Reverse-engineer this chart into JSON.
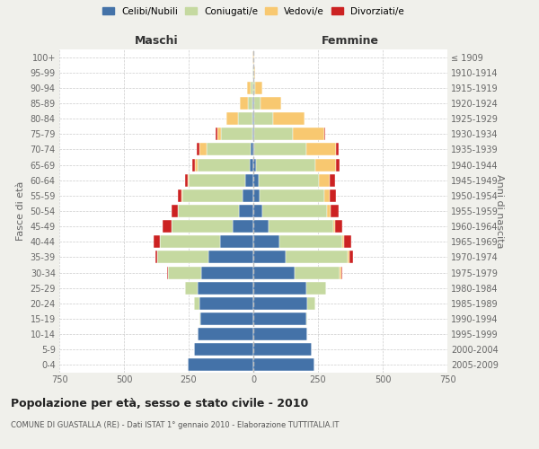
{
  "age_groups": [
    "0-4",
    "5-9",
    "10-14",
    "15-19",
    "20-24",
    "25-29",
    "30-34",
    "35-39",
    "40-44",
    "45-49",
    "50-54",
    "55-59",
    "60-64",
    "65-69",
    "70-74",
    "75-79",
    "80-84",
    "85-89",
    "90-94",
    "95-99",
    "100+"
  ],
  "birth_years": [
    "2005-2009",
    "2000-2004",
    "1995-1999",
    "1990-1994",
    "1985-1989",
    "1980-1984",
    "1975-1979",
    "1970-1974",
    "1965-1969",
    "1960-1964",
    "1955-1959",
    "1950-1954",
    "1945-1949",
    "1940-1944",
    "1935-1939",
    "1930-1934",
    "1925-1929",
    "1920-1924",
    "1915-1919",
    "1910-1914",
    "≤ 1909"
  ],
  "colors": {
    "celibi": "#4472a8",
    "coniugati": "#c5d9a0",
    "vedovi": "#f8c870",
    "divorziati": "#cc2222"
  },
  "maschi": {
    "celibi": [
      255,
      230,
      215,
      205,
      210,
      215,
      200,
      175,
      130,
      80,
      55,
      40,
      30,
      15,
      10,
      5,
      3,
      2,
      1,
      0,
      0
    ],
    "coniugati": [
      0,
      0,
      0,
      5,
      20,
      50,
      130,
      195,
      230,
      235,
      235,
      235,
      220,
      200,
      170,
      120,
      55,
      20,
      8,
      2,
      1
    ],
    "vedovi": [
      0,
      0,
      0,
      0,
      0,
      0,
      0,
      0,
      0,
      2,
      2,
      3,
      5,
      10,
      30,
      15,
      45,
      30,
      15,
      3,
      1
    ],
    "divorziati": [
      0,
      0,
      0,
      0,
      0,
      0,
      5,
      10,
      25,
      35,
      25,
      15,
      10,
      10,
      10,
      5,
      0,
      0,
      0,
      0,
      0
    ]
  },
  "femmine": {
    "celibi": [
      235,
      225,
      210,
      205,
      210,
      205,
      160,
      125,
      100,
      60,
      35,
      25,
      20,
      10,
      5,
      3,
      2,
      2,
      1,
      0,
      0
    ],
    "coniugati": [
      0,
      0,
      0,
      5,
      30,
      75,
      175,
      240,
      245,
      250,
      250,
      250,
      235,
      230,
      200,
      150,
      75,
      25,
      5,
      2,
      1
    ],
    "vedovi": [
      0,
      0,
      0,
      0,
      0,
      0,
      5,
      5,
      5,
      5,
      15,
      20,
      40,
      80,
      115,
      120,
      120,
      80,
      30,
      5,
      2
    ],
    "divorziati": [
      0,
      0,
      0,
      0,
      0,
      0,
      5,
      15,
      30,
      30,
      30,
      25,
      20,
      15,
      10,
      5,
      0,
      0,
      0,
      0,
      0
    ]
  },
  "title": "Popolazione per età, sesso e stato civile - 2010",
  "subtitle": "COMUNE DI GUASTALLA (RE) - Dati ISTAT 1° gennaio 2010 - Elaborazione TUTTITALIA.IT",
  "xlabel_left": "Maschi",
  "xlabel_right": "Femmine",
  "ylabel_left": "Fasce di età",
  "ylabel_right": "Anni di nascita",
  "xlim": 750,
  "legend_labels": [
    "Celibi/Nubili",
    "Coniugati/e",
    "Vedovi/e",
    "Divorziati/e"
  ],
  "bg_color": "#f0f0eb",
  "plot_bg_color": "#ffffff"
}
